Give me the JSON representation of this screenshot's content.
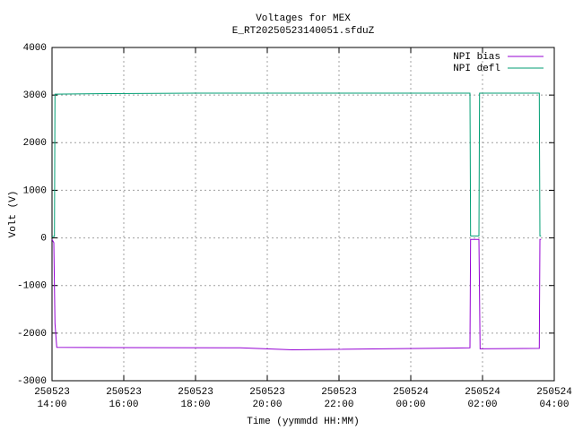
{
  "chart_data": {
    "type": "line",
    "title": "Voltages for MEX",
    "subtitle": "E_RT20250523140051.sfduZ",
    "xlabel": "Time (yymmdd HH:MM)",
    "ylabel": "Volt (V)",
    "xlim": [
      "250523 14:00",
      "250524 04:00"
    ],
    "xticks": [
      {
        "value": "250523 14:00",
        "label": [
          "250523",
          "14:00"
        ]
      },
      {
        "value": "250523 16:00",
        "label": [
          "250523",
          "16:00"
        ]
      },
      {
        "value": "250523 18:00",
        "label": [
          "250523",
          "18:00"
        ]
      },
      {
        "value": "250523 20:00",
        "label": [
          "250523",
          "20:00"
        ]
      },
      {
        "value": "250523 22:00",
        "label": [
          "250523",
          "22:00"
        ]
      },
      {
        "value": "250524 00:00",
        "label": [
          "250524",
          "00:00"
        ]
      },
      {
        "value": "250524 02:00",
        "label": [
          "250524",
          "02:00"
        ]
      },
      {
        "value": "250524 04:00",
        "label": [
          "250524",
          "04:00"
        ]
      }
    ],
    "ylim": [
      -3000,
      4000
    ],
    "yticks": [
      -3000,
      -2000,
      -1000,
      0,
      1000,
      2000,
      3000,
      4000
    ],
    "grid": true,
    "legend": "top-right",
    "series": [
      {
        "name": "NPI bias",
        "color": "#9400d3",
        "x": [
          "250523 14:00",
          "250523 14:03",
          "250523 14:05",
          "250523 14:08",
          "250523 19:15",
          "250523 20:42",
          "250524 01:39",
          "250524 01:40",
          "250524 01:54",
          "250524 01:56",
          "250524 03:35",
          "250524 03:36",
          "250524 03:38"
        ],
        "values": [
          -30,
          -100,
          -1800,
          -2300,
          -2310,
          -2350,
          -2310,
          -30,
          -30,
          -2330,
          -2320,
          -30,
          -30
        ]
      },
      {
        "name": "NPI defl",
        "color": "#009e73",
        "x": [
          "250523 14:00",
          "250523 14:04",
          "250523 14:05",
          "250523 15:30",
          "250523 18:00",
          "250523 22:00",
          "250524 01:39",
          "250524 01:40",
          "250524 01:54",
          "250524 01:55",
          "250524 03:35",
          "250524 03:36",
          "250524 03:38"
        ],
        "values": [
          30,
          30,
          3020,
          3030,
          3040,
          3040,
          3040,
          40,
          40,
          3040,
          3040,
          40,
          40
        ]
      }
    ]
  }
}
